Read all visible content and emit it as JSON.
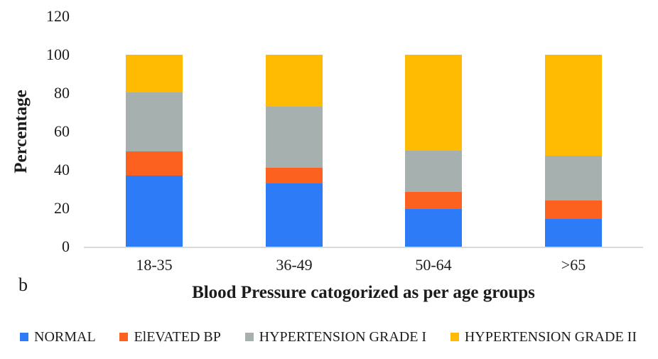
{
  "figure_label": "b",
  "chart_data": {
    "type": "bar",
    "stacked": true,
    "title": "",
    "xlabel": "Blood Pressure catogorized as per age groups",
    "ylabel": "Percentage",
    "categories": [
      "18-35",
      "36-49",
      "50-64",
      ">65"
    ],
    "series": [
      {
        "name": "NORMAL",
        "color": "#2D7BF6",
        "values": [
          37.0,
          33.0,
          19.5,
          14.5
        ]
      },
      {
        "name": "ElEVATED BP",
        "color": "#FC6120",
        "values": [
          12.5,
          8.0,
          9.0,
          9.5
        ]
      },
      {
        "name": "HYPERTENSION GRADE I",
        "color": "#A6B0AF",
        "values": [
          31.0,
          32.0,
          21.5,
          23.5
        ]
      },
      {
        "name": "HYPERTENSION GRADE II",
        "color": "#FEBB01",
        "values": [
          19.5,
          27.0,
          50.0,
          52.5
        ]
      }
    ],
    "y_ticks": [
      0,
      20,
      40,
      60,
      80,
      100,
      120
    ],
    "ylim": [
      0,
      120
    ],
    "grid": false,
    "legend_position": "bottom",
    "bar_totals": [
      100,
      100,
      100,
      100
    ]
  },
  "colors": {
    "axis_line": "#D9D9D9",
    "text": "#1C1C1C",
    "background": "#FFFFFF"
  }
}
